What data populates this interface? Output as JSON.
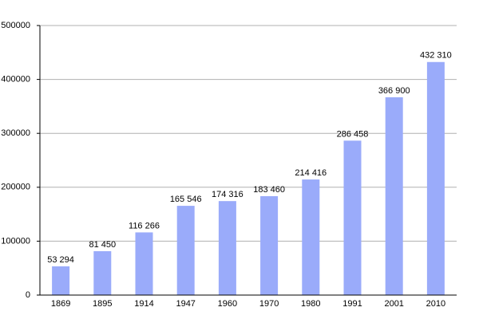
{
  "chart_data": {
    "type": "bar",
    "categories": [
      "1869",
      "1895",
      "1914",
      "1947",
      "1960",
      "1970",
      "1980",
      "1991",
      "2001",
      "2010"
    ],
    "values": [
      53294,
      81450,
      116266,
      165546,
      174316,
      183460,
      214416,
      286458,
      366900,
      432310
    ],
    "value_labels": [
      "53 294",
      "81 450",
      "116 266",
      "165 546",
      "174 316",
      "183 460",
      "214 416",
      "286 458",
      "366 900",
      "432 310"
    ],
    "color": "#9aabfa",
    "ylim": [
      0,
      500000
    ],
    "yticks": [
      0,
      100000,
      200000,
      300000,
      400000,
      500000
    ],
    "grid": true
  }
}
